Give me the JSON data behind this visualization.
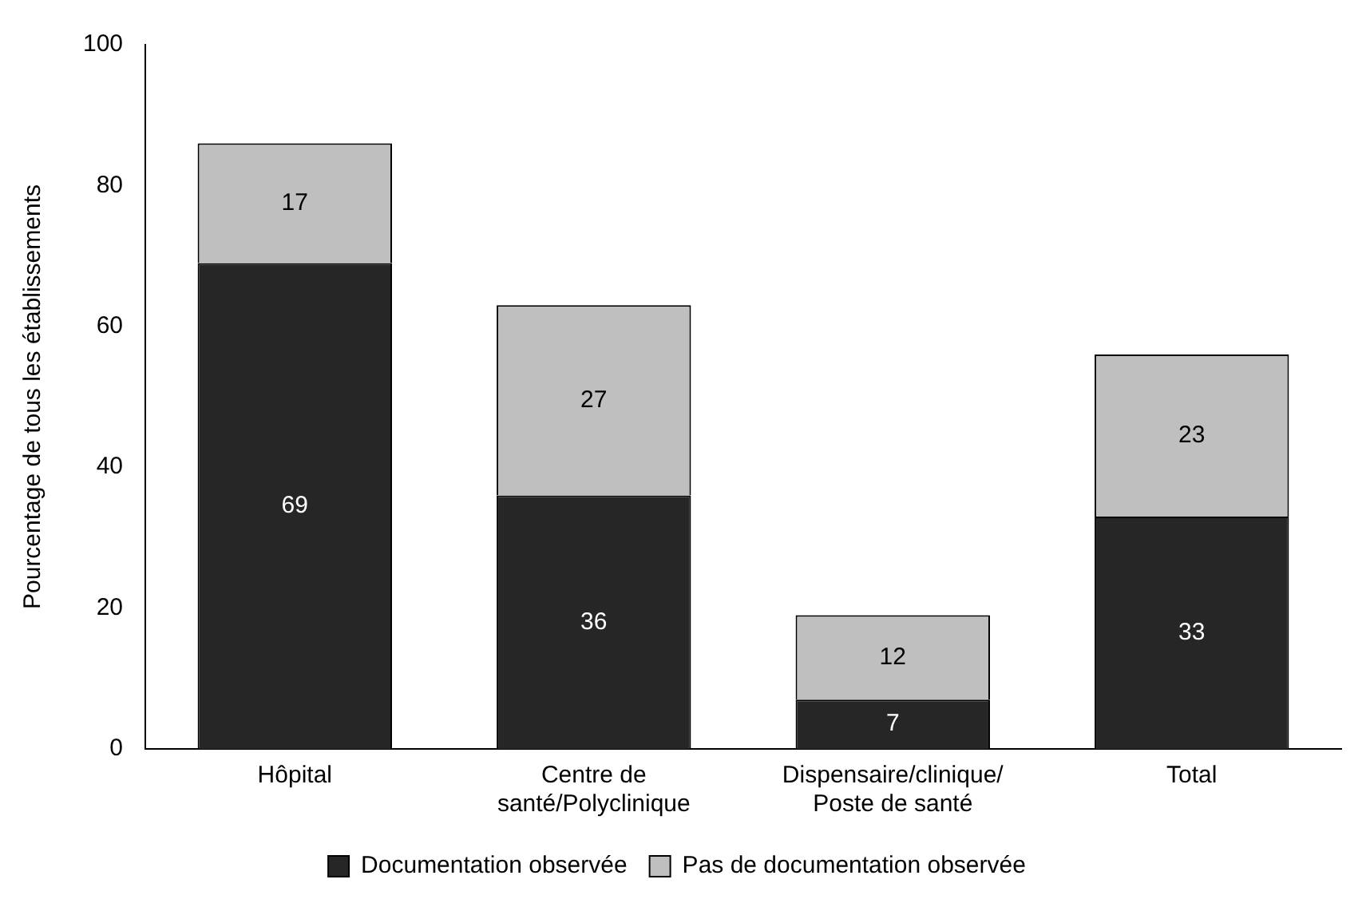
{
  "chart_data": {
    "type": "bar",
    "stacked": true,
    "ylabel": "Pourcentage de tous les établissements",
    "categories": [
      "Hôpital",
      "Centre de santé/Polyclinique",
      "Dispensaire/clinique/ Poste de santé",
      "Total"
    ],
    "series": [
      {
        "name": "Documentation observée",
        "color": "#262626",
        "values": [
          69,
          36,
          7,
          33
        ]
      },
      {
        "name": "Pas de documentation observée",
        "color": "#bfbfbf",
        "values": [
          17,
          27,
          12,
          23
        ]
      }
    ],
    "ylim": [
      0,
      100
    ],
    "yticks": [
      0,
      20,
      40,
      60,
      80,
      100
    ],
    "grid": false,
    "legend": "bottom",
    "data_labels": true
  }
}
